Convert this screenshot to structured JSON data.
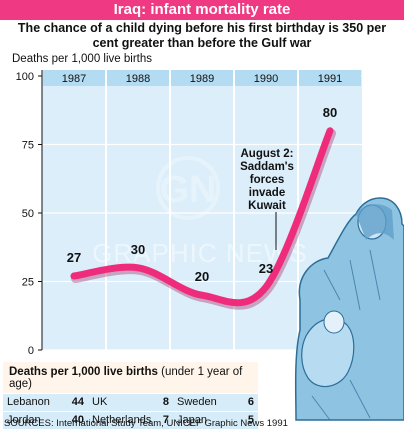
{
  "header": {
    "title": "Iraq: infant mortality rate",
    "subtitle": "The chance of a child dying before his first birthday is 350 per cent greater than before the Gulf war"
  },
  "colors": {
    "accent": "#ef3a83",
    "line": "#ef2c7c",
    "plot_bg": "#dbeefa",
    "col_header": "#b3dcf3",
    "table_header_bg": "#fff5ea",
    "table_row_bg": "#d6ecf8"
  },
  "chart_data": {
    "type": "line",
    "ylabel": "Deaths per 1,000 live births",
    "ylim": [
      0,
      100
    ],
    "yticks": [
      "0",
      "25",
      "50",
      "75",
      "100"
    ],
    "ytick_values": [
      0,
      25,
      50,
      75,
      100
    ],
    "categories": [
      "1987",
      "1988",
      "1989",
      "1990",
      "1991"
    ],
    "values": [
      27,
      30,
      20,
      23,
      80
    ],
    "data_labels": [
      "27",
      "30",
      "20",
      "23",
      "80"
    ],
    "annotation": "August 2: Saddam's forces invade Kuwait",
    "grid": true
  },
  "watermark": {
    "logo": "GN",
    "text": "GRAPHIC NEWS"
  },
  "table": {
    "title": "Deaths per 1,000 live births",
    "subtitle": "(under 1 year of age)",
    "rows": [
      [
        {
          "name": "Lebanon",
          "value": "44"
        },
        {
          "name": "UK",
          "value": "8"
        },
        {
          "name": "Sweden",
          "value": "6"
        }
      ],
      [
        {
          "name": "Jordan",
          "value": "40"
        },
        {
          "name": "Netherlands",
          "value": "7"
        },
        {
          "name": "Japan",
          "value": "5"
        }
      ]
    ]
  },
  "sources": "SOURCES: International Study Team, UNICEF  Graphic News 1991"
}
